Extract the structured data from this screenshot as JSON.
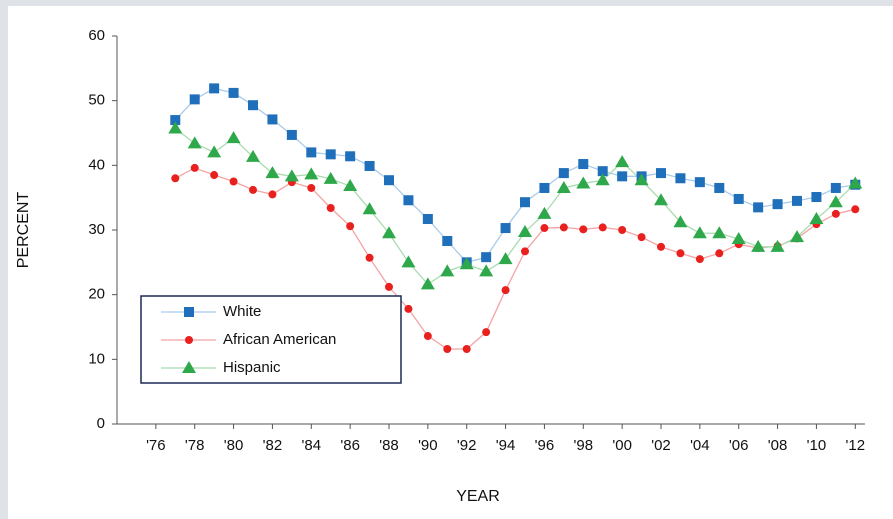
{
  "chart_data": {
    "type": "line",
    "x_label": "YEAR",
    "y_label": "PERCENT",
    "x": [
      1977,
      1978,
      1979,
      1980,
      1981,
      1982,
      1983,
      1984,
      1985,
      1986,
      1987,
      1988,
      1989,
      1990,
      1991,
      1992,
      1993,
      1994,
      1995,
      1996,
      1997,
      1998,
      1999,
      2000,
      2001,
      2002,
      2003,
      2004,
      2005,
      2006,
      2007,
      2008,
      2009,
      2010,
      2011,
      2012
    ],
    "series": [
      {
        "name": "White",
        "color": "#1f6fba",
        "line_color": "#a9cbea",
        "marker": "square",
        "values": [
          47,
          50.2,
          51.9,
          51.2,
          49.3,
          47.1,
          44.7,
          42,
          41.7,
          41.4,
          39.9,
          37.7,
          34.6,
          31.7,
          28.3,
          25,
          25.8,
          30.3,
          34.3,
          36.5,
          38.8,
          40.2,
          39.1,
          38.3,
          38.3,
          38.8,
          38,
          37.4,
          36.5,
          34.8,
          33.5,
          34,
          34.5,
          35.1,
          36.5,
          37
        ]
      },
      {
        "name": "African American",
        "color": "#e8211f",
        "line_color": "#f4a3a3",
        "marker": "circle",
        "values": [
          38,
          39.6,
          38.5,
          37.5,
          36.2,
          35.5,
          37.4,
          36.5,
          33.4,
          30.6,
          25.7,
          21.2,
          17.8,
          13.6,
          11.6,
          11.6,
          14.2,
          20.7,
          26.7,
          30.3,
          30.4,
          30.1,
          30.4,
          30,
          28.9,
          27.4,
          26.4,
          25.5,
          26.4,
          27.8,
          27.2,
          27.5,
          28.7,
          30.9,
          32.5,
          33.2
        ]
      },
      {
        "name": "Hispanic",
        "color": "#2ea84a",
        "line_color": "#a8dcb0",
        "marker": "triangle",
        "values": [
          45.7,
          43.4,
          42,
          44.2,
          41.3,
          38.8,
          38.3,
          38.6,
          37.9,
          36.8,
          33.2,
          29.5,
          25,
          21.6,
          23.6,
          24.7,
          23.6,
          25.5,
          29.7,
          32.5,
          36.5,
          37.2,
          37.7,
          40.5,
          37.7,
          34.6,
          31.2,
          29.5,
          29.5,
          28.6,
          27.4,
          27.4,
          28.9,
          31.7,
          34.3,
          37.2
        ]
      }
    ],
    "xlim": [
      1974,
      2012.5
    ],
    "xticks": [
      {
        "value": 1976,
        "label": "'76"
      },
      {
        "value": 1978,
        "label": "'78"
      },
      {
        "value": 1980,
        "label": "'80"
      },
      {
        "value": 1982,
        "label": "'82"
      },
      {
        "value": 1984,
        "label": "'84"
      },
      {
        "value": 1986,
        "label": "'86"
      },
      {
        "value": 1988,
        "label": "'88"
      },
      {
        "value": 1990,
        "label": "'90"
      },
      {
        "value": 1992,
        "label": "'92"
      },
      {
        "value": 1994,
        "label": "'94"
      },
      {
        "value": 1996,
        "label": "'96"
      },
      {
        "value": 1998,
        "label": "'98"
      },
      {
        "value": 2000,
        "label": "'00"
      },
      {
        "value": 2002,
        "label": "'02"
      },
      {
        "value": 2004,
        "label": "'04"
      },
      {
        "value": 2006,
        "label": "'06"
      },
      {
        "value": 2008,
        "label": "'08"
      },
      {
        "value": 2010,
        "label": "'10"
      },
      {
        "value": 2012,
        "label": "'12"
      }
    ],
    "ylim": [
      0,
      60
    ],
    "yticks": [
      0,
      10,
      20,
      30,
      40,
      50,
      60
    ],
    "grid": false,
    "legend": "lower-left"
  }
}
